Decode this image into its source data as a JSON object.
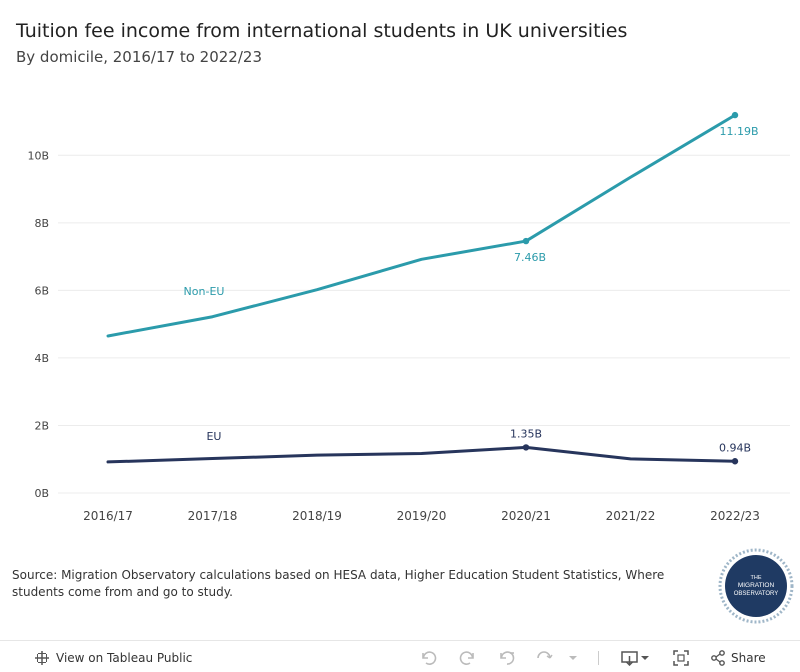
{
  "chart_data": {
    "type": "line",
    "title": "Tuition fee income from international students in UK universities",
    "subtitle": "By domicile, 2016/17 to 2022/23",
    "categories": [
      "2016/17",
      "2017/18",
      "2018/19",
      "2019/20",
      "2020/21",
      "2021/22",
      "2022/23"
    ],
    "yticks": [
      "0B",
      "2B",
      "4B",
      "6B",
      "8B",
      "10B"
    ],
    "ylim": [
      0,
      12.2
    ],
    "grid": true,
    "series": [
      {
        "name": "Non-EU",
        "color": "#2b9bab",
        "values": [
          4.65,
          5.22,
          6.02,
          6.92,
          7.46,
          9.35,
          11.19
        ],
        "labels": [
          {
            "index": 4,
            "text": "7.46B"
          },
          {
            "index": 6,
            "text": "11.19B"
          }
        ],
        "markers": [
          4,
          6
        ]
      },
      {
        "name": "EU",
        "color": "#27355c",
        "values": [
          0.92,
          1.02,
          1.12,
          1.17,
          1.35,
          1.01,
          0.94
        ],
        "labels": [
          {
            "index": 4,
            "text": "1.35B"
          },
          {
            "index": 6,
            "text": "0.94B"
          }
        ],
        "markers": [
          4,
          6
        ]
      }
    ]
  },
  "source": "Source: Migration Observatory calculations based on HESA data, Higher Education Student Statistics, Where students come from and go to study.",
  "logo": {
    "line1": "THE",
    "line2": "MIGRATION",
    "line3": "OBSERVATORY"
  },
  "toolbar": {
    "view_label": "View on Tableau Public",
    "share_label": "Share"
  }
}
